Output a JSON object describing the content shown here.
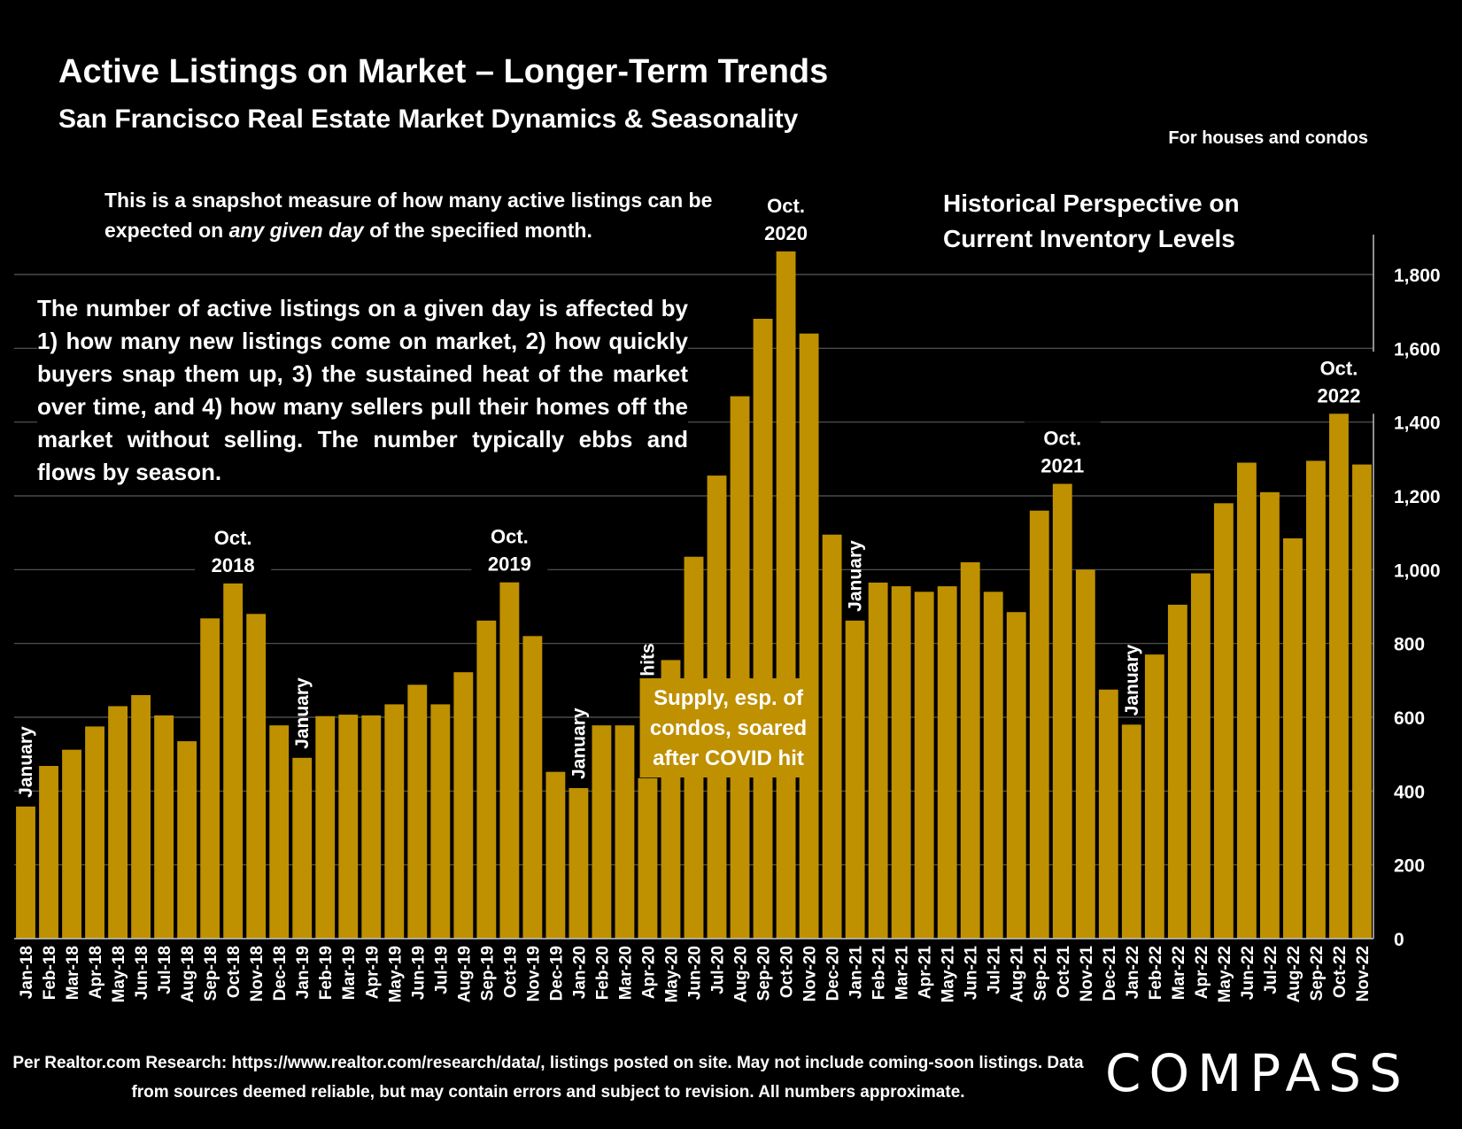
{
  "header": {
    "title": "Active Listings on Market – Longer-Term Trends",
    "subtitle": "San Francisco Real Estate Market Dynamics & Seasonality",
    "scope_note": "For houses and condos"
  },
  "notes": {
    "snapshot_before": "This is a snapshot measure of how many active listings can be expected on ",
    "snapshot_italic": "any given day",
    "snapshot_after": " of the specified month.",
    "historical": "Historical Perspective on Current Inventory Levels",
    "explain": "The number of active listings on a given day is affected by 1) how many new listings come on market, 2) how quickly buyers snap them up, 3) the sustained heat of the market over time, and 4) how many sellers pull their homes off the market without selling. The number typically ebbs and flows by season."
  },
  "footer": {
    "source": "Per Realtor.com Research:  https://www.realtor.com/research/data/, listings posted on site. May not include coming-soon listings. Data from sources deemed reliable, but may contain errors and subject to revision. All numbers approximate.",
    "brand": "COMPASS"
  },
  "colors": {
    "bar": "#BF9000",
    "background": "#000000",
    "text": "#FFFFFF",
    "grid": "#595959"
  },
  "chart_data": {
    "type": "bar",
    "title": "Active Listings on Market – Longer-Term Trends",
    "ylim": [
      0,
      1800
    ],
    "yticks": [
      0,
      200,
      400,
      600,
      800,
      1000,
      1200,
      1400,
      1600,
      1800
    ],
    "ytick_labels": [
      "0",
      "200",
      "400",
      "600",
      "800",
      "1,000",
      "1,200",
      "1,400",
      "1,600",
      "1,800"
    ],
    "y_axis_side": "right",
    "grid": true,
    "categories": [
      "Jan-18",
      "Feb-18",
      "Mar-18",
      "Apr-18",
      "May-18",
      "Jun-18",
      "Jul-18",
      "Aug-18",
      "Sep-18",
      "Oct-18",
      "Nov-18",
      "Dec-18",
      "Jan-19",
      "Feb-19",
      "Mar-19",
      "Apr-19",
      "May-19",
      "Jun-19",
      "Jul-19",
      "Aug-19",
      "Sep-19",
      "Oct-19",
      "Nov-19",
      "Dec-19",
      "Jan-20",
      "Feb-20",
      "Mar-20",
      "Apr-20",
      "May-20",
      "Jun-20",
      "Jul-20",
      "Aug-20",
      "Sep-20",
      "Oct-20",
      "Nov-20",
      "Dec-20",
      "Jan-21",
      "Feb-21",
      "Mar-21",
      "Apr-21",
      "May-21",
      "Jun-21",
      "Jul-21",
      "Aug-21",
      "Sep-21",
      "Oct-21",
      "Nov-21",
      "Dec-21",
      "Jan-22",
      "Feb-22",
      "Mar-22",
      "Apr-22",
      "May-22",
      "Jun-22",
      "Jul-22",
      "Aug-22",
      "Sep-22",
      "Oct-22",
      "Nov-22"
    ],
    "values": [
      358,
      468,
      512,
      575,
      630,
      660,
      605,
      535,
      868,
      965,
      880,
      578,
      490,
      603,
      607,
      605,
      635,
      688,
      635,
      722,
      862,
      968,
      820,
      452,
      408,
      578,
      578,
      435,
      755,
      1035,
      1255,
      1470,
      1680,
      1865,
      1640,
      1095,
      862,
      965,
      955,
      940,
      955,
      1020,
      940,
      885,
      1160,
      1235,
      1000,
      675,
      580,
      770,
      905,
      990,
      1180,
      1290,
      1210,
      1085,
      1295,
      1425,
      1285
    ],
    "annotations": [
      {
        "label": "January",
        "at": "Jan-18",
        "rotated": true
      },
      {
        "label": "Oct.\n2018",
        "at": "Oct-18",
        "rotated": false
      },
      {
        "label": "January",
        "at": "Jan-19",
        "rotated": true
      },
      {
        "label": "Oct.\n2019",
        "at": "Oct-19",
        "rotated": false
      },
      {
        "label": "January",
        "at": "Jan-20",
        "rotated": true
      },
      {
        "label": "Pandemic hits",
        "at": "Apr-20",
        "rotated": true
      },
      {
        "label": "Oct.\n2020",
        "at": "Oct-20",
        "rotated": false
      },
      {
        "label": "January",
        "at": "Jan-21",
        "rotated": true
      },
      {
        "label": "Oct.\n2021",
        "at": "Oct-21",
        "rotated": false
      },
      {
        "label": "January",
        "at": "Jan-22",
        "rotated": true
      },
      {
        "label": "Oct.\n2022",
        "at": "Oct-22",
        "rotated": false
      }
    ],
    "callout": "Supply, esp. of condos, soared after COVID hit"
  }
}
